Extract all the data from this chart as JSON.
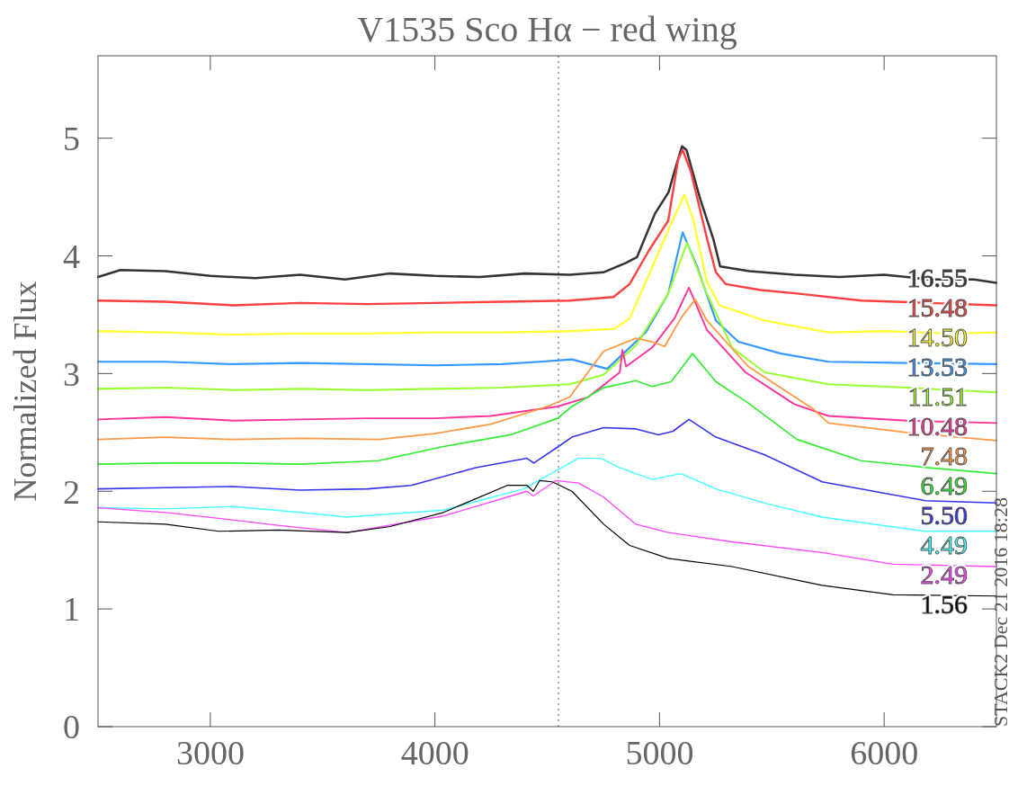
{
  "chart_data": {
    "type": "line",
    "title": "V1535 Sco Hα − red wing",
    "ylabel": "Normalized Flux",
    "annotations": [
      "STACK2 Dec 21 2016 18:28"
    ],
    "xlim": [
      2500,
      6500
    ],
    "xticks": [
      3000,
      4000,
      5000,
      6000
    ],
    "ylim": [
      0,
      5.7
    ],
    "yticks": [
      0,
      1,
      2,
      3,
      4,
      5
    ],
    "grid": false,
    "line_style": "solid",
    "marker": "none",
    "ref_lines": [
      {
        "axis": "x",
        "value": 4550,
        "line_style": "dotted",
        "color": "#555555"
      }
    ],
    "series": [
      {
        "name": "16.55",
        "color": "#333333",
        "x": [
          2500,
          2600,
          2800,
          3000,
          3200,
          3400,
          3600,
          3800,
          4000,
          4200,
          4400,
          4600,
          4750,
          4850,
          4900,
          4980,
          5040,
          5070,
          5100,
          5120,
          5180,
          5240,
          5270,
          5400,
          5600,
          5800,
          6000,
          6200,
          6400,
          6500
        ],
        "values": [
          3.82,
          3.88,
          3.87,
          3.83,
          3.81,
          3.84,
          3.8,
          3.85,
          3.83,
          3.82,
          3.85,
          3.84,
          3.86,
          3.94,
          3.99,
          4.36,
          4.54,
          4.74,
          4.93,
          4.9,
          4.49,
          4.14,
          3.91,
          3.87,
          3.84,
          3.82,
          3.84,
          3.8,
          3.8,
          3.77
        ]
      },
      {
        "name": "15.48",
        "color": "#ff4040",
        "x": [
          2500,
          2800,
          3100,
          3400,
          3700,
          4000,
          4300,
          4600,
          4795,
          4867,
          4951,
          5039,
          5083,
          5103,
          5139,
          5211,
          5251,
          5295,
          5450,
          5612,
          5900,
          6200,
          6500
        ],
        "values": [
          3.62,
          3.61,
          3.58,
          3.6,
          3.59,
          3.6,
          3.61,
          3.62,
          3.65,
          3.76,
          4.04,
          4.3,
          4.82,
          4.9,
          4.72,
          4.15,
          3.86,
          3.76,
          3.71,
          3.68,
          3.62,
          3.6,
          3.58
        ]
      },
      {
        "name": "14.50",
        "color": "#ffff33",
        "x": [
          2500,
          2800,
          3100,
          3400,
          3700,
          4000,
          4300,
          4600,
          4800,
          4867,
          4939,
          5039,
          5111,
          5151,
          5211,
          5267,
          5468,
          5752,
          6000,
          6300,
          6500
        ],
        "values": [
          3.36,
          3.35,
          3.33,
          3.34,
          3.34,
          3.35,
          3.35,
          3.36,
          3.38,
          3.47,
          3.78,
          4.22,
          4.52,
          4.3,
          3.78,
          3.58,
          3.45,
          3.35,
          3.36,
          3.34,
          3.35
        ]
      },
      {
        "name": "13.53",
        "color": "#3399ff",
        "x": [
          2500,
          2800,
          3100,
          3400,
          3700,
          4000,
          4300,
          4466,
          4610,
          4767,
          4839,
          4939,
          5039,
          5103,
          5167,
          5251,
          5351,
          5540,
          5752,
          6100,
          6500
        ],
        "values": [
          3.1,
          3.1,
          3.08,
          3.09,
          3.08,
          3.07,
          3.08,
          3.1,
          3.12,
          3.04,
          3.17,
          3.35,
          3.68,
          4.2,
          3.91,
          3.45,
          3.27,
          3.17,
          3.1,
          3.09,
          3.08
        ]
      },
      {
        "name": "11.51",
        "color": "#99ff33",
        "x": [
          2500,
          2800,
          3100,
          3400,
          3700,
          4000,
          4300,
          4600,
          4751,
          4895,
          5039,
          5123,
          5211,
          5323,
          5468,
          5752,
          6100,
          6500
        ],
        "values": [
          2.87,
          2.88,
          2.86,
          2.87,
          2.86,
          2.87,
          2.88,
          2.91,
          2.99,
          3.24,
          3.68,
          4.11,
          3.68,
          3.22,
          3.01,
          2.91,
          2.88,
          2.84
        ]
      },
      {
        "name": "10.48",
        "color": "#ff3399",
        "x": [
          2500,
          2800,
          3100,
          3400,
          3700,
          4000,
          4250,
          4546,
          4683,
          4823,
          4835,
          4851,
          4967,
          5067,
          5131,
          5211,
          5383,
          5600,
          5752,
          6100,
          6500
        ],
        "values": [
          2.61,
          2.63,
          2.6,
          2.61,
          2.62,
          2.62,
          2.64,
          2.72,
          2.8,
          3.01,
          3.2,
          3.06,
          3.22,
          3.47,
          3.73,
          3.37,
          3.01,
          2.74,
          2.64,
          2.6,
          2.58
        ]
      },
      {
        "name": "7.48",
        "color": "#ff9944",
        "x": [
          2500,
          2800,
          3100,
          3400,
          3750,
          4000,
          4250,
          4500,
          4600,
          4751,
          4895,
          4967,
          5023,
          5095,
          5159,
          5211,
          5395,
          5684,
          5752,
          6100,
          6500
        ],
        "values": [
          2.44,
          2.46,
          2.44,
          2.45,
          2.44,
          2.49,
          2.57,
          2.72,
          2.8,
          3.19,
          3.3,
          3.27,
          3.23,
          3.47,
          3.63,
          3.45,
          3.06,
          2.7,
          2.58,
          2.5,
          2.43
        ]
      },
      {
        "name": "6.49",
        "color": "#33ee33",
        "x": [
          2500,
          2800,
          3100,
          3400,
          3749,
          4038,
          4338,
          4546,
          4610,
          4751,
          4895,
          4967,
          5051,
          5147,
          5251,
          5395,
          5612,
          5896,
          6200,
          6500
        ],
        "values": [
          2.23,
          2.24,
          2.24,
          2.23,
          2.26,
          2.38,
          2.48,
          2.62,
          2.72,
          2.88,
          2.94,
          2.89,
          2.93,
          3.17,
          2.93,
          2.75,
          2.44,
          2.26,
          2.2,
          2.15
        ]
      },
      {
        "name": "5.50",
        "color": "#3333ee",
        "x": [
          2500,
          2800,
          3100,
          3400,
          3700,
          3894,
          4182,
          4410,
          4440,
          4550,
          4610,
          4751,
          4895,
          4995,
          5060,
          5131,
          5251,
          5468,
          5724,
          6184,
          6500
        ],
        "values": [
          2.02,
          2.03,
          2.04,
          2.01,
          2.02,
          2.05,
          2.2,
          2.28,
          2.24,
          2.38,
          2.46,
          2.54,
          2.53,
          2.48,
          2.51,
          2.61,
          2.46,
          2.31,
          2.08,
          1.92,
          1.9
        ]
      },
      {
        "name": "4.49",
        "color": "#44ffff",
        "x": [
          2500,
          2800,
          3100,
          3400,
          3609,
          4038,
          4394,
          4546,
          4638,
          4740,
          4823,
          4967,
          5095,
          5251,
          5468,
          5724,
          6184,
          6500
        ],
        "values": [
          1.86,
          1.85,
          1.87,
          1.82,
          1.78,
          1.84,
          2.02,
          2.18,
          2.28,
          2.28,
          2.2,
          2.1,
          2.15,
          2.02,
          1.9,
          1.78,
          1.66,
          1.66
        ]
      },
      {
        "name": "2.49",
        "color": "#ff44ff",
        "x": [
          2500,
          2800,
          3037,
          3300,
          3609,
          4038,
          4410,
          4438,
          4538,
          4640,
          4751,
          4895,
          5039,
          5323,
          5724,
          6040,
          6500
        ],
        "values": [
          1.86,
          1.82,
          1.77,
          1.71,
          1.65,
          1.79,
          2,
          1.96,
          2.09,
          2.07,
          1.95,
          1.72,
          1.65,
          1.57,
          1.48,
          1.38,
          1.36
        ]
      },
      {
        "name": "1.56",
        "color": "#000000",
        "x": [
          2500,
          2800,
          3037,
          3300,
          3609,
          3800,
          4038,
          4322,
          4410,
          4438,
          4466,
          4522,
          4610,
          4751,
          4867,
          5039,
          5323,
          5724,
          6040,
          6500
        ],
        "values": [
          1.74,
          1.72,
          1.66,
          1.67,
          1.65,
          1.7,
          1.82,
          2.05,
          2.05,
          2,
          2.09,
          2.08,
          2,
          1.72,
          1.54,
          1.43,
          1.36,
          1.2,
          1.12,
          1.11
        ]
      }
    ]
  }
}
